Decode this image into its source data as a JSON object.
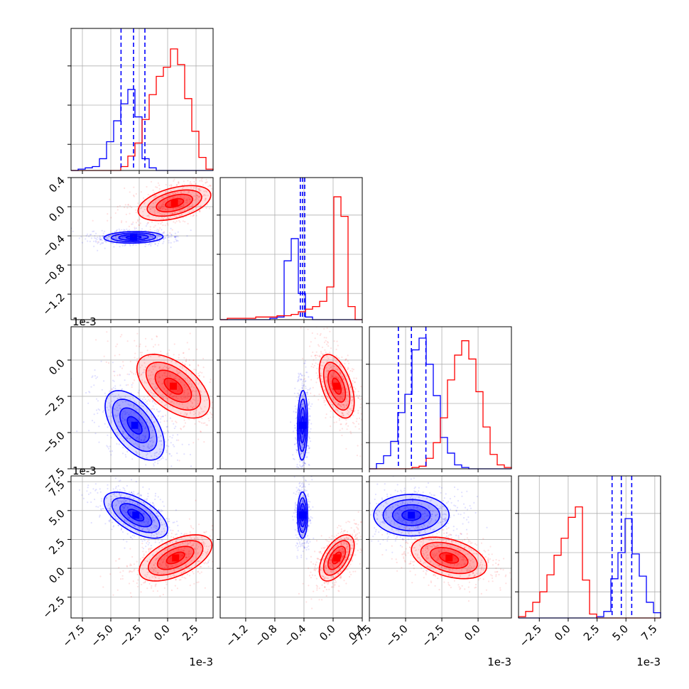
{
  "chart_data": {
    "type": "corner",
    "series": [
      {
        "name": "blue",
        "color": "#0000ff"
      },
      {
        "name": "red",
        "color": "#ff0000"
      }
    ],
    "parameters": [
      {
        "index": 0,
        "offset_text": "1e-3",
        "range": [
          -8.5,
          4.0
        ],
        "ticks": [
          -7.5,
          -5.0,
          -2.5,
          0.0,
          2.5
        ],
        "tick_labels": [
          "−7.5",
          "−5.0",
          "−2.5",
          "0.0",
          "2.5"
        ]
      },
      {
        "index": 1,
        "offset_text": "",
        "range": [
          -1.55,
          0.4
        ],
        "ticks": [
          -1.2,
          -0.8,
          -0.4,
          0.0,
          0.4
        ],
        "tick_labels": [
          "−1.2",
          "−0.8",
          "−0.4",
          "0.0",
          "0.4"
        ]
      },
      {
        "index": 2,
        "offset_text": "1e-3",
        "range": [
          -7.5,
          2.3
        ],
        "ticks": [
          -7.5,
          -5.0,
          -2.5,
          0.0
        ],
        "tick_labels": [
          "−7.5",
          "−5.0",
          "−2.5",
          "0.0"
        ]
      },
      {
        "index": 3,
        "offset_text": "1e-3",
        "range": [
          -4.3,
          8.0
        ],
        "ticks": [
          -2.5,
          0.0,
          2.5,
          5.0,
          7.5
        ],
        "tick_labels": [
          "−2.5",
          "0.0",
          "2.5",
          "5.0",
          "7.5"
        ]
      }
    ],
    "blue_quantiles": [
      [
        -4.1,
        -3.0,
        -2.0
      ],
      [
        -0.45,
        -0.42,
        -0.39
      ],
      [
        -5.5,
        -4.6,
        -3.6
      ],
      [
        3.8,
        4.6,
        5.5
      ]
    ],
    "histograms": {
      "p0": {
        "blue": [
          0,
          0.01,
          0.02,
          0.03,
          0.09,
          0.22,
          0.38,
          0.51,
          0.62,
          0.41,
          0.09,
          0.02,
          0,
          0,
          0,
          0,
          0,
          0,
          0,
          0
        ],
        "red": [
          0,
          0,
          0,
          0,
          0,
          0,
          0,
          0.03,
          0.11,
          0.21,
          0.39,
          0.58,
          0.72,
          0.79,
          0.93,
          0.81,
          0.55,
          0.3,
          0.1,
          0.01
        ]
      },
      "p1": {
        "blue": [
          0,
          0,
          0,
          0,
          0,
          0,
          0,
          0.01,
          0.02,
          0.45,
          0.62,
          0.2,
          0.02,
          0,
          0,
          0,
          0,
          0,
          0,
          0
        ],
        "red": [
          0,
          0.01,
          0.01,
          0.01,
          0.01,
          0.02,
          0.02,
          0.02,
          0.03,
          0.03,
          0.04,
          0.06,
          0.08,
          0.1,
          0.14,
          0.25,
          0.94,
          0.79,
          0.1,
          0
        ]
      },
      "p2": {
        "blue": [
          0,
          0.04,
          0.1,
          0.21,
          0.43,
          0.57,
          0.91,
          1.0,
          0.8,
          0.56,
          0.24,
          0.12,
          0.03,
          0.01,
          0,
          0,
          0,
          0,
          0,
          0
        ],
        "red": [
          0,
          0,
          0,
          0,
          0,
          0,
          0.01,
          0.02,
          0.08,
          0.2,
          0.39,
          0.68,
          0.87,
          0.98,
          0.84,
          0.59,
          0.32,
          0.11,
          0.03,
          0.01
        ]
      },
      "p3": {
        "blue": [
          0,
          0,
          0,
          0,
          0,
          0,
          0,
          0,
          0,
          0,
          0,
          0.01,
          0.05,
          0.3,
          0.5,
          0.76,
          0.49,
          0.32,
          0.12,
          0.04
        ],
        "red": [
          0.01,
          0.05,
          0.12,
          0.2,
          0.33,
          0.48,
          0.61,
          0.77,
          0.85,
          0.29,
          0.03,
          0,
          0,
          0,
          0,
          0,
          0,
          0,
          0,
          0
        ]
      }
    },
    "clusters": {
      "p1_vs_p0": {
        "blue": {
          "mean": [
            -3.0,
            -0.42
          ],
          "sd": [
            1.3,
            0.04
          ],
          "corr": 0.1
        },
        "red": {
          "mean": [
            0.6,
            0.05
          ],
          "sd": [
            1.6,
            0.12
          ],
          "corr": 0.45
        }
      },
      "p2_vs_p0": {
        "blue": {
          "mean": [
            -2.9,
            -4.5
          ],
          "sd": [
            1.3,
            1.2
          ],
          "corr": -0.55
        },
        "red": {
          "mean": [
            0.5,
            -1.8
          ],
          "sd": [
            1.6,
            1.1
          ],
          "corr": -0.55
        }
      },
      "p3_vs_p0": {
        "blue": {
          "mean": [
            -2.8,
            4.6
          ],
          "sd": [
            1.4,
            1.0
          ],
          "corr": -0.6
        },
        "red": {
          "mean": [
            0.7,
            0.9
          ],
          "sd": [
            1.6,
            1.0
          ],
          "corr": 0.55
        }
      },
      "p2_vs_p1": {
        "blue": {
          "mean": [
            -0.42,
            -4.5
          ],
          "sd": [
            0.035,
            1.2
          ],
          "corr": 0.1
        },
        "red": {
          "mean": [
            0.05,
            -1.8
          ],
          "sd": [
            0.12,
            1.1
          ],
          "corr": -0.5
        }
      },
      "p3_vs_p1": {
        "blue": {
          "mean": [
            -0.42,
            4.6
          ],
          "sd": [
            0.035,
            1.0
          ],
          "corr": 0.0
        },
        "red": {
          "mean": [
            0.05,
            0.9
          ],
          "sd": [
            0.12,
            1.0
          ],
          "corr": 0.55
        }
      },
      "p3_vs_p2": {
        "blue": {
          "mean": [
            -4.6,
            4.6
          ],
          "sd": [
            1.3,
            0.9
          ],
          "corr": 0.0
        },
        "red": {
          "mean": [
            -2.0,
            0.9
          ],
          "sd": [
            1.3,
            0.9
          ],
          "corr": -0.4
        }
      }
    }
  }
}
